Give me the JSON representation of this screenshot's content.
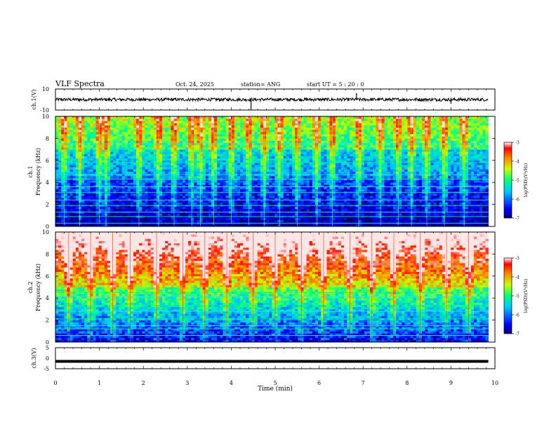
{
  "header": {
    "title": "VLF Spectra",
    "date": "Oct. 24, 2025",
    "station": "station= ANG",
    "start": "start  UT  =   5  : 20 : 0"
  },
  "chart_data": [
    {
      "type": "line",
      "name": "ch1-waveform",
      "ylabel": "ch.1(V)",
      "ylim": [
        -10,
        10
      ],
      "yticks": [
        "10",
        "-10"
      ],
      "xlim": [
        0,
        10
      ],
      "baseline": 0,
      "noise_amplitude": 1.5,
      "spikes": [
        {
          "x": 4.45,
          "y": -10
        },
        {
          "x": 6.85,
          "y": 6
        },
        {
          "x": 9.0,
          "y": -4
        }
      ]
    },
    {
      "type": "heatmap",
      "name": "ch1-spectrogram",
      "ylabel": "ch.1",
      "ylabel2": "Frequency  (kHz)",
      "xlim": [
        0,
        9.85
      ],
      "ylim": [
        0,
        10
      ],
      "yticks": [
        "0",
        "2",
        "4",
        "6",
        "8",
        "10"
      ],
      "colorbar": {
        "label": "log(PSD)(V²/Hz)",
        "range": [
          -7,
          -3
        ],
        "ticks": [
          "-3",
          "-4",
          "-5",
          "-6",
          "-7"
        ]
      },
      "line_bands_khz": [
        0.3,
        0.9,
        1.3,
        1.9,
        2.4,
        3.1,
        3.6,
        4.3,
        4.7,
        5.8,
        7.5
      ],
      "vertical_bursts_min": [
        0.2,
        0.55,
        1.0,
        1.15,
        1.9,
        2.35,
        2.7,
        3.1,
        3.3,
        3.6,
        4.0,
        4.4,
        4.75,
        5.1,
        5.5,
        5.95,
        6.3,
        6.9,
        7.4,
        7.8,
        8.1,
        8.45,
        8.85,
        9.3
      ]
    },
    {
      "type": "heatmap",
      "name": "ch2-spectrogram",
      "ylabel": "ch.2",
      "ylabel2": "Frequency  (kHz)",
      "xlim": [
        0,
        9.85
      ],
      "ylim": [
        0,
        10
      ],
      "yticks": [
        "0",
        "2",
        "4",
        "6",
        "8",
        "10"
      ],
      "colorbar": {
        "label": "log(PSD)(V²/Hz)",
        "range": [
          -7,
          -3
        ],
        "ticks": [
          "-3",
          "-4",
          "-5",
          "-6",
          "-7"
        ]
      },
      "line_bands_khz": [
        0.6,
        1.2,
        1.5,
        2.1,
        2.8,
        3.3,
        4.1,
        4.5
      ],
      "vertical_bursts_min": [
        0.3,
        0.8,
        1.3,
        1.7,
        2.3,
        2.9,
        3.4,
        3.9,
        4.5,
        5.0,
        5.6,
        6.1,
        6.7,
        7.2,
        7.7,
        8.3,
        8.9,
        9.4
      ]
    },
    {
      "type": "line",
      "name": "ch3-waveform",
      "ylabel": "ch.3(V)",
      "ylim": [
        -5,
        5
      ],
      "yticks": [
        "5",
        "0",
        "-5"
      ],
      "xlim": [
        0,
        10
      ],
      "baseline": -1.5
    }
  ],
  "xaxis": {
    "label": "Time  (min)",
    "ticks": [
      "0",
      "1",
      "2",
      "3",
      "4",
      "5",
      "6",
      "7",
      "8",
      "9",
      "10"
    ],
    "range": [
      0,
      10
    ]
  }
}
